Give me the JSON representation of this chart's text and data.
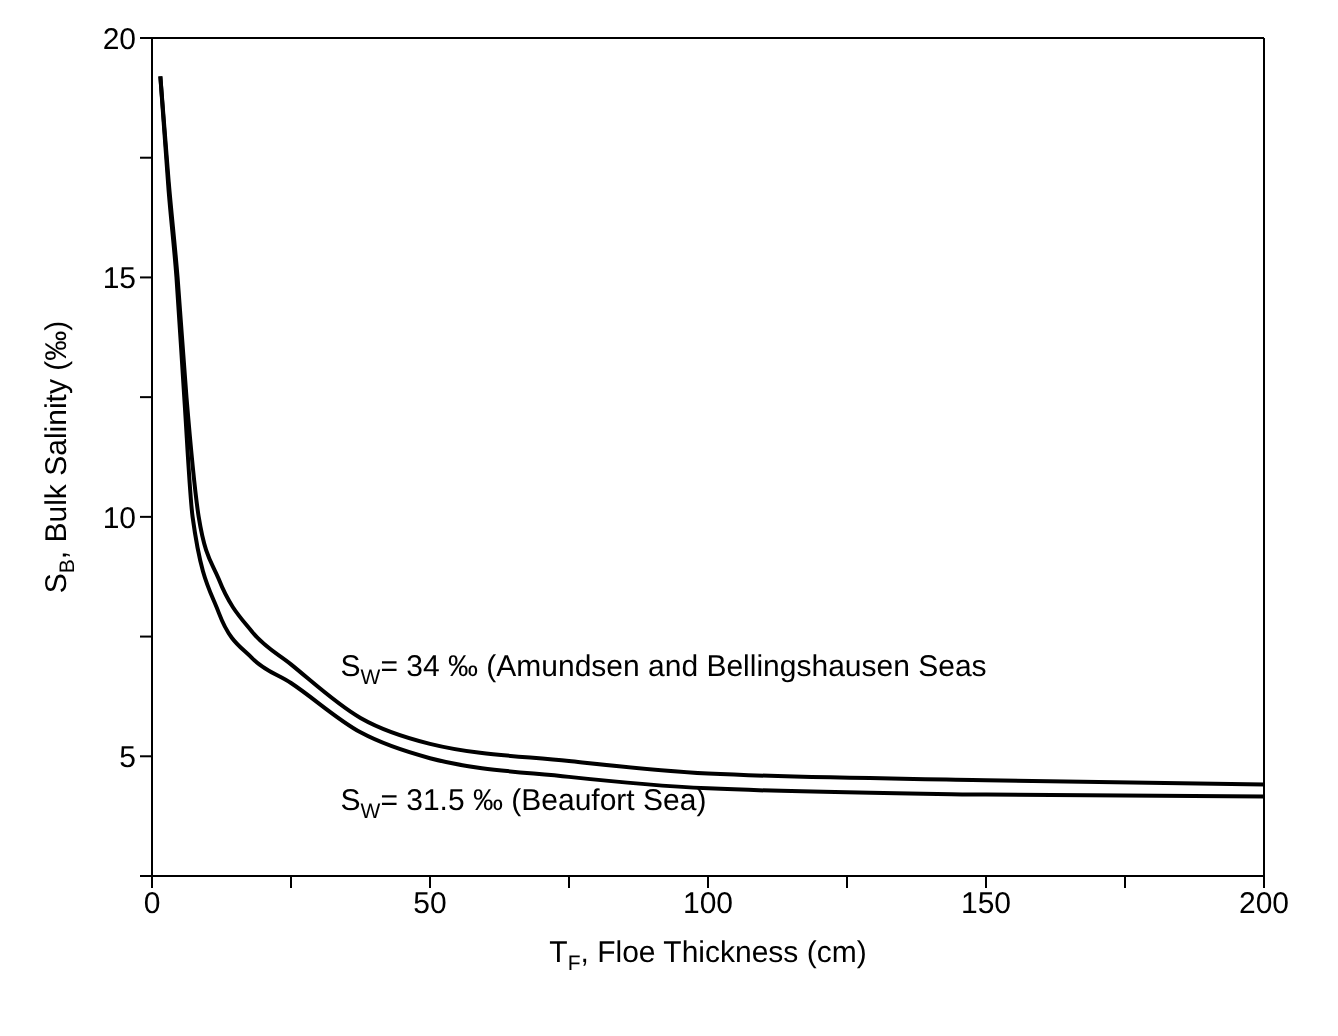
{
  "chart_data": {
    "type": "line",
    "xlabel": "T$_{F}$, Floe Thickness (cm)",
    "ylabel": "S$_{B}$, Bulk Salinity (‰)",
    "xlim": [
      0,
      200
    ],
    "xticks": [
      0,
      {
        "value": 25,
        "label": null
      },
      50,
      {
        "value": 75,
        "label": null
      },
      100,
      {
        "value": 125,
        "label": null
      },
      150,
      {
        "value": 175,
        "label": null
      },
      200
    ],
    "ylim": [
      2.5,
      20
    ],
    "yticks": [
      {
        "value": 2.5,
        "label": null
      },
      5,
      {
        "value": 7.5,
        "label": null
      },
      10,
      {
        "value": 12.5,
        "label": null
      },
      15,
      {
        "value": 17.5,
        "label": null
      },
      20
    ],
    "series": [
      {
        "name": "S$_{W}$= 34 ‰ (Amundsen and Bellingshausen Seas",
        "color": "#000000",
        "x": [
          1.5,
          3,
          4.6,
          6.2,
          8.4,
          12,
          18,
          25,
          37.5,
          50,
          75,
          100,
          150,
          200
        ],
        "values": [
          19.2,
          17.0,
          15,
          12.5,
          10,
          8.7,
          7.6,
          6.92,
          5.8,
          5.26,
          4.9,
          4.64,
          4.5,
          4.41
        ]
      },
      {
        "name": "S$_{W}$= 31.5 ‰ (Beaufort Sea)",
        "color": "#000000",
        "x": [
          1.5,
          3,
          4.4,
          5.8,
          7.3,
          12,
          18,
          25,
          37.5,
          50,
          75,
          100,
          150,
          200
        ],
        "values": [
          19.2,
          16.8,
          15,
          12.5,
          10,
          8.0,
          7.05,
          6.53,
          5.5,
          4.96,
          4.57,
          4.33,
          4.2,
          4.16
        ]
      }
    ],
    "marker": "none",
    "line_style": "solid"
  }
}
